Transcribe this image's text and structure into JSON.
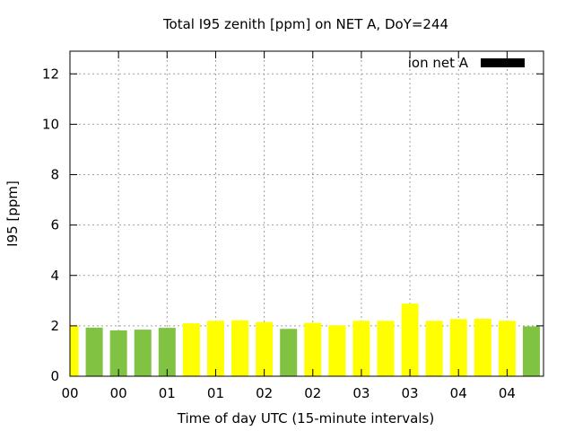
{
  "chart_data": {
    "type": "bar",
    "title": "Total I95 zenith [ppm] on NET A, DoY=244",
    "xlabel": "Time of day UTC (15-minute intervals)",
    "ylabel": "I95 [ppm]",
    "ylim": [
      0,
      12.9
    ],
    "y_ticks": [
      "0",
      "2",
      "4",
      "6",
      "8",
      "10",
      "12"
    ],
    "x_tick_labels": [
      "00",
      "00",
      "01",
      "01",
      "02",
      "02",
      "03",
      "03",
      "04",
      "04"
    ],
    "grid": true,
    "legend": {
      "label": "ion net A",
      "placement": "top-right",
      "swatch_color": "#000000"
    },
    "series": [
      {
        "values": [
          2.0,
          1.93,
          1.82,
          1.85,
          1.92,
          2.1,
          2.2,
          2.22,
          2.15,
          1.88,
          2.12,
          2.02,
          2.2,
          2.2,
          2.88,
          2.2,
          2.27,
          2.28,
          2.2,
          1.98
        ],
        "colors": [
          "#ffff00",
          "#80c342",
          "#80c342",
          "#80c342",
          "#80c342",
          "#ffff00",
          "#ffff00",
          "#ffff00",
          "#ffff00",
          "#80c342",
          "#ffff00",
          "#ffff00",
          "#ffff00",
          "#ffff00",
          "#ffff00",
          "#ffff00",
          "#ffff00",
          "#ffff00",
          "#ffff00",
          "#80c342"
        ]
      }
    ]
  }
}
